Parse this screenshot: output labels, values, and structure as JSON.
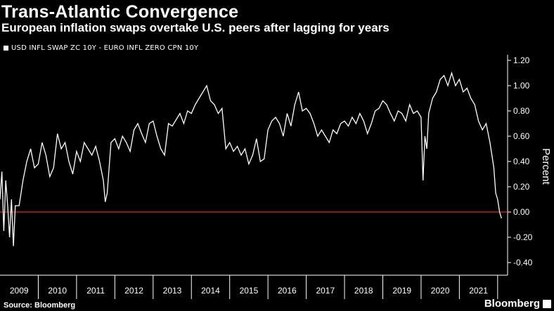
{
  "header": {
    "title": "Trans-Atlantic Convergence",
    "subtitle": "European inflation swaps overtake U.S. peers after lagging for years"
  },
  "footer": {
    "source": "Source: Bloomberg",
    "brand": "Bloomberg"
  },
  "colors": {
    "background": "#000000",
    "series": "#ffffff",
    "zero_line": "#e0281f",
    "axis": "#ffffff"
  },
  "chart_data": {
    "type": "line",
    "title": "Trans-Atlantic Convergence",
    "subtitle": "European inflation swaps overtake U.S. peers after lagging for years",
    "ylabel": "Percent",
    "xlabel": "",
    "ylim": [
      -0.4,
      1.2
    ],
    "y_ticks": [
      "1.20",
      "1.00",
      "0.80",
      "0.60",
      "0.40",
      "0.20",
      "0.00",
      "-0.20",
      "-0.40"
    ],
    "x_ticks": [
      "2009",
      "2010",
      "2011",
      "2012",
      "2013",
      "2014",
      "2015",
      "2016",
      "2017",
      "2018",
      "2019",
      "2020",
      "2021"
    ],
    "grid": false,
    "legend_position": "top-left",
    "reference_line": {
      "y": 0,
      "label": ""
    },
    "series": [
      {
        "name": "USD INFL SWAP ZC 10Y - EURO INFL ZERO CPN 10Y",
        "x": [
          2009.0,
          2009.05,
          2009.1,
          2009.15,
          2009.2,
          2009.25,
          2009.3,
          2009.35,
          2009.4,
          2009.5,
          2009.6,
          2009.7,
          2009.8,
          2009.9,
          2010.0,
          2010.1,
          2010.2,
          2010.3,
          2010.4,
          2010.5,
          2010.6,
          2010.7,
          2010.8,
          2010.9,
          2011.0,
          2011.1,
          2011.2,
          2011.3,
          2011.4,
          2011.5,
          2011.6,
          2011.7,
          2011.75,
          2011.8,
          2011.9,
          2012.0,
          2012.1,
          2012.2,
          2012.3,
          2012.4,
          2012.5,
          2012.6,
          2012.7,
          2012.8,
          2012.9,
          2013.0,
          2013.1,
          2013.2,
          2013.3,
          2013.4,
          2013.5,
          2013.6,
          2013.7,
          2013.8,
          2013.9,
          2014.0,
          2014.1,
          2014.2,
          2014.3,
          2014.4,
          2014.5,
          2014.6,
          2014.7,
          2014.8,
          2014.9,
          2015.0,
          2015.1,
          2015.2,
          2015.3,
          2015.4,
          2015.5,
          2015.6,
          2015.7,
          2015.8,
          2015.9,
          2016.0,
          2016.1,
          2016.2,
          2016.3,
          2016.4,
          2016.5,
          2016.6,
          2016.7,
          2016.8,
          2016.9,
          2017.0,
          2017.1,
          2017.2,
          2017.3,
          2017.4,
          2017.5,
          2017.6,
          2017.7,
          2017.8,
          2017.9,
          2018.0,
          2018.1,
          2018.2,
          2018.3,
          2018.4,
          2018.5,
          2018.6,
          2018.7,
          2018.8,
          2018.9,
          2019.0,
          2019.1,
          2019.2,
          2019.3,
          2019.4,
          2019.5,
          2019.6,
          2019.7,
          2019.8,
          2019.9,
          2020.0,
          2020.05,
          2020.1,
          2020.15,
          2020.2,
          2020.3,
          2020.4,
          2020.5,
          2020.6,
          2020.7,
          2020.8,
          2020.9,
          2021.0,
          2021.1,
          2021.2,
          2021.3,
          2021.4,
          2021.5,
          2021.6,
          2021.7,
          2021.8,
          2021.85,
          2021.9,
          2021.95,
          2022.0,
          2022.05,
          2022.1
        ],
        "y": [
          0.1,
          0.32,
          -0.15,
          0.25,
          0.05,
          -0.2,
          0.1,
          -0.27,
          0.05,
          0.05,
          0.25,
          0.4,
          0.5,
          0.35,
          0.38,
          0.55,
          0.45,
          0.28,
          0.35,
          0.62,
          0.5,
          0.55,
          0.4,
          0.3,
          0.48,
          0.4,
          0.55,
          0.5,
          0.45,
          0.52,
          0.4,
          0.25,
          0.08,
          0.15,
          0.55,
          0.58,
          0.5,
          0.6,
          0.55,
          0.48,
          0.65,
          0.7,
          0.62,
          0.55,
          0.7,
          0.72,
          0.6,
          0.5,
          0.45,
          0.7,
          0.68,
          0.73,
          0.78,
          0.7,
          0.8,
          0.78,
          0.85,
          0.9,
          0.95,
          1.0,
          0.88,
          0.85,
          0.78,
          0.82,
          0.5,
          0.55,
          0.48,
          0.52,
          0.45,
          0.5,
          0.38,
          0.45,
          0.58,
          0.4,
          0.42,
          0.65,
          0.72,
          0.75,
          0.7,
          0.6,
          0.78,
          0.68,
          0.85,
          0.95,
          0.8,
          0.82,
          0.78,
          0.7,
          0.6,
          0.65,
          0.6,
          0.55,
          0.65,
          0.62,
          0.7,
          0.72,
          0.68,
          0.75,
          0.7,
          0.78,
          0.72,
          0.62,
          0.7,
          0.8,
          0.82,
          0.88,
          0.85,
          0.78,
          0.72,
          0.8,
          0.78,
          0.72,
          0.85,
          0.78,
          0.8,
          0.75,
          0.25,
          0.6,
          0.5,
          0.78,
          0.9,
          0.95,
          1.05,
          1.08,
          1.0,
          1.1,
          1.0,
          1.05,
          0.95,
          0.98,
          0.9,
          0.85,
          0.72,
          0.65,
          0.7,
          0.55,
          0.45,
          0.35,
          0.15,
          0.1,
          0.0,
          -0.05
        ]
      }
    ]
  }
}
